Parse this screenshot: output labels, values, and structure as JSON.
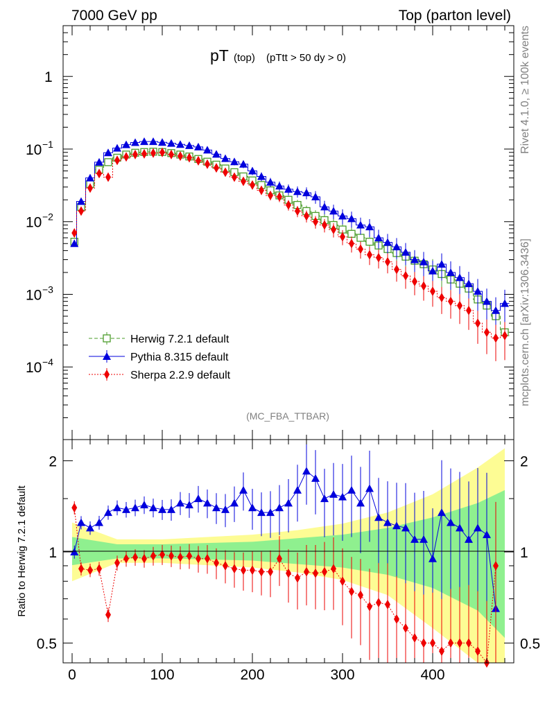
{
  "header": {
    "energy_label": "7000 GeV pp",
    "process_label": "Top (parton level)"
  },
  "side_labels": {
    "rivet": "Rivet 4.1.0, ≥ 100k events",
    "mcplots": "mcplots.cern.ch [arXiv:1306.3436]"
  },
  "chart_data": [
    {
      "type": "line",
      "title_main": "pT",
      "title_sub1": "(top)",
      "title_sub2": "(pTtt > 50 dy > 0)",
      "analysis_tag": "(MC_FBA_TTBAR)",
      "yscale": "log",
      "ylim": [
        1e-05,
        5
      ],
      "xlim": [
        -10,
        490
      ],
      "y_ticks": [
        {
          "value": 1,
          "base": "1",
          "exp": ""
        },
        {
          "value": 0.1,
          "base": "10",
          "exp": "−1"
        },
        {
          "value": 0.01,
          "base": "10",
          "exp": "−2"
        },
        {
          "value": 0.001,
          "base": "10",
          "exp": "−3"
        },
        {
          "value": 0.0001,
          "base": "10",
          "exp": "−4"
        }
      ],
      "legend": [
        {
          "name": "Herwig 7.2.1 default",
          "color": "#4a9c2a",
          "marker": "open-square",
          "line": "dashed"
        },
        {
          "name": "Pythia 8.315 default",
          "color": "#0000dd",
          "marker": "triangle",
          "line": "solid"
        },
        {
          "name": "Sherpa 2.2.9 default",
          "color": "#ee0000",
          "marker": "diamond",
          "line": "dotted"
        }
      ],
      "series": [
        {
          "name": "Herwig 7.2.1 default",
          "x": [
            2.5,
            10,
            20,
            30,
            40,
            50,
            60,
            70,
            80,
            90,
            100,
            110,
            120,
            130,
            140,
            150,
            160,
            170,
            180,
            190,
            200,
            210,
            220,
            230,
            240,
            250,
            260,
            270,
            280,
            290,
            300,
            310,
            320,
            330,
            340,
            350,
            360,
            370,
            380,
            390,
            400,
            410,
            420,
            430,
            440,
            450,
            460,
            470,
            480
          ],
          "y": [
            0.0053,
            0.016,
            0.033,
            0.052,
            0.066,
            0.076,
            0.084,
            0.089,
            0.091,
            0.092,
            0.091,
            0.088,
            0.084,
            0.079,
            0.073,
            0.067,
            0.061,
            0.054,
            0.048,
            0.042,
            0.037,
            0.032,
            0.027,
            0.023,
            0.02,
            0.017,
            0.014,
            0.012,
            0.0105,
            0.009,
            0.0078,
            0.0068,
            0.006,
            0.0053,
            0.0047,
            0.0042,
            0.0037,
            0.0033,
            0.0029,
            0.0026,
            0.0022,
            0.0019,
            0.0016,
            0.0014,
            0.0012,
            0.00085,
            0.0007,
            0.0005,
            0.0003
          ]
        },
        {
          "name": "Pythia 8.315 default",
          "x": [
            2.5,
            10,
            20,
            30,
            40,
            50,
            60,
            70,
            80,
            90,
            100,
            110,
            120,
            130,
            140,
            150,
            160,
            170,
            180,
            190,
            200,
            210,
            220,
            230,
            240,
            250,
            260,
            270,
            280,
            290,
            300,
            310,
            320,
            330,
            340,
            350,
            360,
            370,
            380,
            390,
            400,
            410,
            420,
            430,
            440,
            450,
            460,
            470,
            480
          ],
          "y": [
            0.005,
            0.019,
            0.04,
            0.066,
            0.089,
            0.103,
            0.115,
            0.123,
            0.127,
            0.127,
            0.124,
            0.12,
            0.116,
            0.112,
            0.107,
            0.097,
            0.085,
            0.074,
            0.067,
            0.062,
            0.05,
            0.042,
            0.035,
            0.031,
            0.028,
            0.026,
            0.025,
            0.022,
            0.016,
            0.014,
            0.012,
            0.011,
            0.009,
            0.0085,
            0.006,
            0.0052,
            0.0045,
            0.0038,
            0.003,
            0.0028,
            0.0021,
            0.0026,
            0.002,
            0.0017,
            0.0014,
            0.0011,
            0.0008,
            0.0006,
            0.00075
          ]
        },
        {
          "name": "Sherpa 2.2.9 default",
          "x": [
            2.5,
            10,
            20,
            30,
            40,
            50,
            60,
            70,
            80,
            90,
            100,
            110,
            120,
            130,
            140,
            150,
            160,
            170,
            180,
            190,
            200,
            210,
            220,
            230,
            240,
            250,
            260,
            270,
            280,
            290,
            300,
            310,
            320,
            330,
            340,
            350,
            360,
            370,
            380,
            390,
            400,
            410,
            420,
            430,
            440,
            450,
            460,
            470,
            480
          ],
          "y": [
            0.007,
            0.014,
            0.029,
            0.046,
            0.041,
            0.07,
            0.078,
            0.084,
            0.086,
            0.088,
            0.09,
            0.084,
            0.08,
            0.076,
            0.069,
            0.062,
            0.055,
            0.048,
            0.041,
            0.036,
            0.032,
            0.027,
            0.023,
            0.022,
            0.017,
            0.014,
            0.012,
            0.01,
            0.009,
            0.0078,
            0.0062,
            0.005,
            0.0042,
            0.0035,
            0.0032,
            0.0028,
            0.0022,
            0.0018,
            0.0015,
            0.0013,
            0.0011,
            0.0009,
            0.0008,
            0.0007,
            0.0006,
            0.0004,
            0.0003,
            0.00025,
            0.00027
          ]
        }
      ]
    },
    {
      "type": "line",
      "ylabel": "Ratio to Herwig 7.2.1 default",
      "yscale": "log",
      "ylim": [
        0.43,
        2.35
      ],
      "xlim": [
        -10,
        490
      ],
      "x_ticks": [
        0,
        100,
        200,
        300,
        400
      ],
      "y_ticks": [
        0.5,
        1,
        2
      ],
      "y_tick_labels": [
        "0.5",
        "1",
        "2"
      ],
      "band": {
        "x": [
          0,
          50,
          100,
          150,
          200,
          250,
          300,
          350,
          400,
          450,
          480
        ],
        "green_half": [
          0.12,
          0.06,
          0.06,
          0.07,
          0.08,
          0.11,
          0.14,
          0.2,
          0.3,
          0.45,
          0.6
        ],
        "yellow_half": [
          0.25,
          0.1,
          0.1,
          0.12,
          0.14,
          0.18,
          0.24,
          0.35,
          0.55,
          0.9,
          1.2
        ]
      },
      "series": [
        {
          "name": "Pythia 8.315 default",
          "x": [
            2.5,
            10,
            20,
            30,
            40,
            50,
            60,
            70,
            80,
            90,
            100,
            110,
            120,
            130,
            140,
            150,
            160,
            170,
            180,
            190,
            200,
            210,
            220,
            230,
            240,
            250,
            260,
            270,
            280,
            290,
            300,
            310,
            320,
            330,
            340,
            350,
            360,
            370,
            380,
            390,
            400,
            410,
            420,
            430,
            440,
            450,
            460,
            470
          ],
          "y": [
            1.0,
            1.25,
            1.2,
            1.25,
            1.35,
            1.4,
            1.38,
            1.4,
            1.43,
            1.4,
            1.38,
            1.38,
            1.45,
            1.43,
            1.5,
            1.45,
            1.4,
            1.38,
            1.45,
            1.6,
            1.4,
            1.35,
            1.35,
            1.4,
            1.45,
            1.6,
            1.85,
            1.75,
            1.5,
            1.55,
            1.52,
            1.6,
            1.45,
            1.62,
            1.3,
            1.25,
            1.22,
            1.2,
            1.1,
            1.1,
            0.95,
            1.35,
            1.25,
            1.2,
            1.1,
            1.2,
            1.14,
            0.65
          ]
        },
        {
          "name": "Sherpa 2.2.9 default",
          "x": [
            2.5,
            10,
            20,
            30,
            40,
            50,
            60,
            70,
            80,
            90,
            100,
            110,
            120,
            130,
            140,
            150,
            160,
            170,
            180,
            190,
            200,
            210,
            220,
            230,
            240,
            250,
            260,
            270,
            280,
            290,
            300,
            310,
            320,
            330,
            340,
            350,
            360,
            370,
            380,
            390,
            400,
            410,
            420,
            430,
            440,
            450,
            460,
            470
          ],
          "y": [
            1.4,
            0.88,
            0.87,
            0.88,
            0.62,
            0.92,
            0.95,
            0.96,
            0.95,
            0.97,
            0.98,
            0.97,
            0.96,
            0.97,
            0.95,
            0.95,
            0.92,
            0.9,
            0.88,
            0.87,
            0.87,
            0.86,
            0.86,
            0.95,
            0.85,
            0.82,
            0.86,
            0.85,
            0.86,
            0.88,
            0.8,
            0.74,
            0.72,
            0.66,
            0.68,
            0.67,
            0.6,
            0.56,
            0.52,
            0.5,
            0.5,
            0.47,
            0.5,
            0.5,
            0.5,
            0.47,
            0.43,
            0.9
          ]
        }
      ]
    }
  ]
}
